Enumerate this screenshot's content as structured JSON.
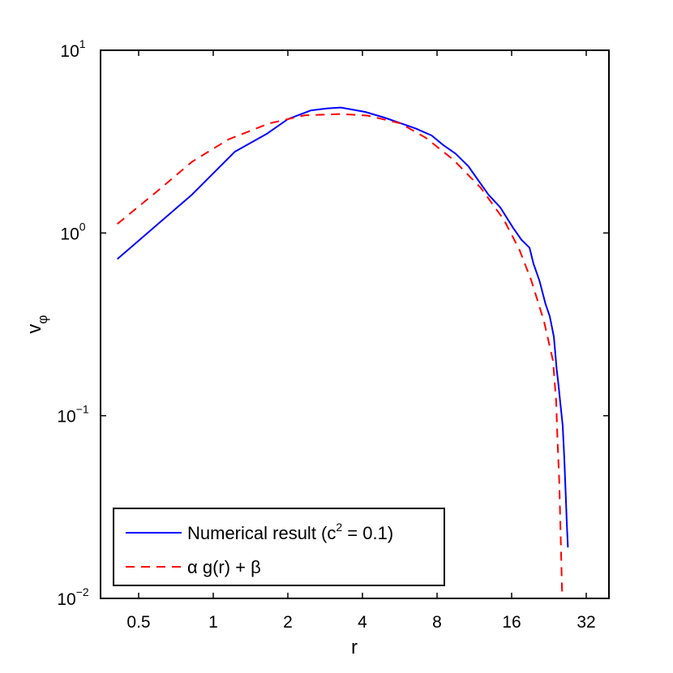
{
  "chart_data": {
    "type": "line",
    "title": "",
    "xlabel": "r",
    "ylabel": "v_φ",
    "xscale": "log2",
    "yscale": "log10",
    "xlim": [
      0.35,
      45
    ],
    "ylim": [
      0.01,
      10
    ],
    "xticks": [
      0.5,
      1,
      2,
      4,
      8,
      16,
      32
    ],
    "xtick_labels": [
      "0.5",
      "1",
      "2",
      "4",
      "8",
      "16",
      "32"
    ],
    "yticks": [
      0.01,
      0.1,
      1,
      10
    ],
    "ytick_labels": [
      {
        "base": "10",
        "exp": "−2"
      },
      {
        "base": "10",
        "exp": "−1"
      },
      {
        "base": "10",
        "exp": "0"
      },
      {
        "base": "10",
        "exp": "1"
      }
    ],
    "grid": false,
    "legend_position": "lower left",
    "series": [
      {
        "name": "Numerical result (c² = 0.1)",
        "color": "#0000ff",
        "style": "solid",
        "x": [
          0.41,
          0.82,
          1.22,
          1.65,
          2.0,
          2.47,
          2.87,
          3.27,
          4.1,
          4.9,
          5.7,
          6.6,
          7.6,
          8.5,
          9.5,
          10.7,
          11.9,
          12.9,
          14.4,
          16.2,
          17.5,
          18.9,
          19.6,
          20.7,
          21.9,
          22.8,
          23.7,
          24.3,
          24.7,
          25.1,
          25.7,
          26.1,
          26.4,
          26.7,
          27.0
        ],
        "y": [
          0.72,
          1.62,
          2.78,
          3.5,
          4.2,
          4.68,
          4.8,
          4.86,
          4.6,
          4.28,
          3.99,
          3.72,
          3.42,
          3.02,
          2.72,
          2.32,
          1.89,
          1.62,
          1.38,
          1.07,
          0.92,
          0.83,
          0.68,
          0.55,
          0.41,
          0.35,
          0.27,
          0.18,
          0.15,
          0.12,
          0.089,
          0.059,
          0.039,
          0.026,
          0.019
        ]
      },
      {
        "name": "α g(r) + β",
        "color": "#ff0000",
        "style": "dashed",
        "x": [
          0.41,
          0.59,
          0.82,
          1.15,
          1.68,
          2.33,
          3.28,
          4.2,
          5.7,
          7.2,
          9.3,
          12.0,
          14.9,
          17.2,
          19.2,
          21.6,
          23.5,
          24.2,
          24.5,
          24.9,
          25.3,
          25.6
        ],
        "y": [
          1.12,
          1.68,
          2.45,
          3.25,
          3.98,
          4.4,
          4.48,
          4.39,
          3.98,
          3.32,
          2.52,
          1.77,
          1.18,
          0.81,
          0.55,
          0.33,
          0.2,
          0.12,
          0.073,
          0.044,
          0.019,
          0.01
        ]
      }
    ]
  },
  "legend": {
    "items": [
      {
        "label_main": "Numerical result (c",
        "label_sup": "2",
        "label_tail": " = 0.1)"
      },
      {
        "label_main": "α g(r) + β"
      }
    ]
  },
  "axes": {
    "xlabel": "r",
    "ylabel_main": "v",
    "ylabel_sub": "φ"
  }
}
